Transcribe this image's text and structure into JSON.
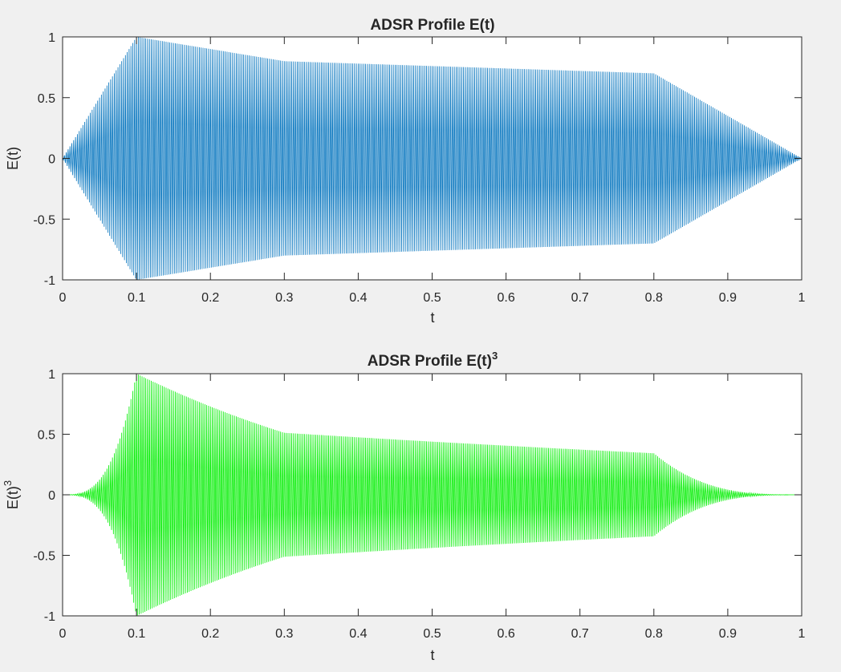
{
  "figure": {
    "background": "#f0f0f0"
  },
  "chart_data": [
    {
      "type": "line",
      "title": "ADSR Profile E(t)",
      "xlabel": "t",
      "ylabel": "E(t)",
      "xlim": [
        0,
        1
      ],
      "ylim": [
        -1,
        1
      ],
      "xticks": [
        0,
        0.1,
        0.2,
        0.3,
        0.4,
        0.5,
        0.6,
        0.7,
        0.8,
        0.9,
        1
      ],
      "xtick_labels": [
        "0",
        "0.1",
        "0.2",
        "0.3",
        "0.4",
        "0.5",
        "0.6",
        "0.7",
        "0.8",
        "0.9",
        "1"
      ],
      "yticks": [
        -1,
        -0.5,
        0,
        0.5,
        1
      ],
      "ytick_labels": [
        "-1",
        "-0.5",
        "0",
        "0.5",
        "1"
      ],
      "grid": false,
      "legend": "none",
      "series": [
        {
          "color": "#0072bd",
          "signal": "oscillation inside envelope",
          "envelope": {
            "t": [
              0,
              0.1,
              0.3,
              0.8,
              1
            ],
            "E": [
              0,
              1,
              0.8,
              0.7,
              0
            ]
          },
          "envelope_exponent": 1,
          "oscillation_cycles": 400
        }
      ]
    },
    {
      "type": "line",
      "title": "ADSR Profile E(t)",
      "title_sup": "3",
      "xlabel": "t",
      "ylabel": "E(t)",
      "ylabel_sup": "3",
      "xlim": [
        0,
        1
      ],
      "ylim": [
        -1,
        1
      ],
      "xticks": [
        0,
        0.1,
        0.2,
        0.3,
        0.4,
        0.5,
        0.6,
        0.7,
        0.8,
        0.9,
        1
      ],
      "xtick_labels": [
        "0",
        "0.1",
        "0.2",
        "0.3",
        "0.4",
        "0.5",
        "0.6",
        "0.7",
        "0.8",
        "0.9",
        "1"
      ],
      "yticks": [
        -1,
        -0.5,
        0,
        0.5,
        1
      ],
      "ytick_labels": [
        "-1",
        "-0.5",
        "0",
        "0.5",
        "1"
      ],
      "grid": false,
      "legend": "none",
      "series": [
        {
          "color": "#00ee00",
          "signal": "oscillation inside envelope",
          "envelope": {
            "t": [
              0,
              0.1,
              0.3,
              0.8,
              1
            ],
            "E": [
              0,
              1,
              0.8,
              0.7,
              0
            ]
          },
          "envelope_exponent": 3,
          "oscillation_cycles": 400
        }
      ]
    }
  ]
}
